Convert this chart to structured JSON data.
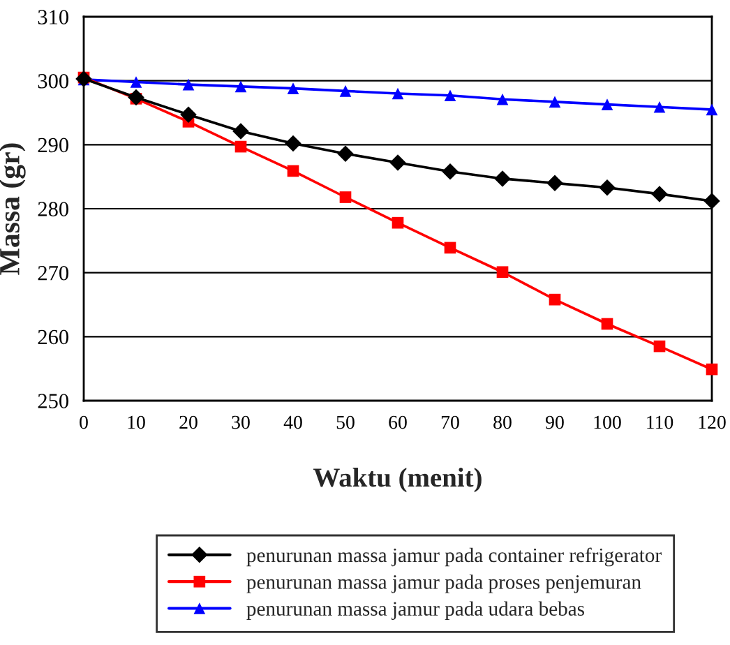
{
  "chart_data": {
    "type": "line",
    "xlabel": "Waktu (menit)",
    "ylabel": "Massa (gr)",
    "x": [
      0,
      10,
      20,
      30,
      40,
      50,
      60,
      70,
      80,
      90,
      100,
      110,
      120
    ],
    "series": [
      {
        "name": "penurunan massa jamur pada container refrigerator",
        "color": "#000000",
        "marker": "diamond",
        "values": [
          300.3,
          297.4,
          294.7,
          292.1,
          290.2,
          288.6,
          287.2,
          285.8,
          284.7,
          284.0,
          283.3,
          282.3,
          281.2
        ]
      },
      {
        "name": "penurunan massa jamur pada proses penjemuran",
        "color": "#ff0000",
        "marker": "square",
        "values": [
          300.5,
          297.2,
          293.6,
          289.7,
          285.9,
          281.8,
          277.8,
          273.9,
          270.1,
          265.8,
          262.0,
          258.5,
          254.9
        ]
      },
      {
        "name": "penurunan massa jamur pada udara bebas",
        "color": "#0000ff",
        "marker": "triangle",
        "values": [
          300.2,
          299.8,
          299.4,
          299.1,
          298.8,
          298.4,
          298.0,
          297.7,
          297.1,
          296.7,
          296.3,
          295.9,
          295.5
        ]
      }
    ],
    "xlim": [
      0,
      120
    ],
    "xticks": [
      0,
      10,
      20,
      30,
      40,
      50,
      60,
      70,
      80,
      90,
      100,
      110,
      120
    ],
    "ylim": [
      250,
      310
    ],
    "yticks": [
      250,
      260,
      270,
      280,
      290,
      300,
      310
    ],
    "grid": "y",
    "legend": "bottom",
    "line_style": "solid"
  }
}
